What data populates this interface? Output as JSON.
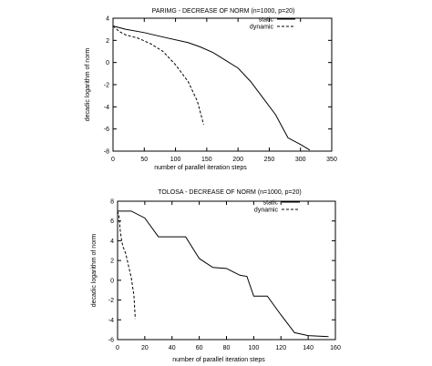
{
  "chart_data": [
    {
      "type": "line",
      "title": "PARIMG - DECREASE OF NORM (n=1000, p=20)",
      "xlabel": "number of parallel iteration steps",
      "ylabel": "decadic logarithm of norm",
      "xlim": [
        0,
        350
      ],
      "ylim": [
        -8,
        4
      ],
      "xticks": [
        0,
        50,
        100,
        150,
        200,
        250,
        300,
        350
      ],
      "yticks": [
        -8,
        -6,
        -4,
        -2,
        0,
        2,
        4
      ],
      "xtick_labels": [
        "0",
        "50",
        "100",
        "150",
        "200",
        "250",
        "300",
        "350"
      ],
      "ytick_labels": [
        "-8",
        "-6",
        "-4",
        "-2",
        "0",
        "2",
        "4"
      ],
      "legend": "top-right",
      "grid": false,
      "series": [
        {
          "name": "static",
          "style": "solid",
          "x": [
            0,
            20,
            50,
            80,
            120,
            140,
            160,
            180,
            200,
            220,
            240,
            260,
            280,
            300,
            315
          ],
          "y": [
            3.3,
            3.0,
            2.7,
            2.3,
            1.8,
            1.4,
            0.9,
            0.2,
            -0.5,
            -1.7,
            -3.2,
            -4.7,
            -6.8,
            -7.4,
            -7.9
          ]
        },
        {
          "name": "dynamic",
          "style": "dashed",
          "x": [
            0,
            10,
            20,
            40,
            60,
            80,
            100,
            120,
            135,
            145
          ],
          "y": [
            3.3,
            2.8,
            2.5,
            2.2,
            1.7,
            1.0,
            -0.2,
            -1.7,
            -3.5,
            -5.6
          ]
        }
      ]
    },
    {
      "type": "line",
      "title": "TOLOSA - DECREASE OF NORM (n=1000, p=20)",
      "xlabel": "number of parallel iteration steps",
      "ylabel": "decadic logarithm of norm",
      "xlim": [
        0,
        160
      ],
      "ylim": [
        -6,
        8
      ],
      "xticks": [
        0,
        20,
        40,
        60,
        80,
        100,
        120,
        140,
        160
      ],
      "yticks": [
        -6,
        -4,
        -2,
        0,
        2,
        4,
        6,
        8
      ],
      "xtick_labels": [
        "0",
        "20",
        "40",
        "60",
        "80",
        "100",
        "120",
        "140",
        "160"
      ],
      "ytick_labels": [
        "-6",
        "-4",
        "-2",
        "0",
        "2",
        "4",
        "6",
        "8"
      ],
      "legend": "top-right",
      "grid": false,
      "series": [
        {
          "name": "static",
          "style": "solid",
          "x": [
            0,
            10,
            20,
            30,
            40,
            50,
            60,
            70,
            80,
            90,
            95,
            100,
            110,
            120,
            130,
            140,
            155
          ],
          "y": [
            7.0,
            7.0,
            6.3,
            4.4,
            4.4,
            4.4,
            2.2,
            1.3,
            1.2,
            0.5,
            0.4,
            -1.6,
            -1.6,
            -3.5,
            -5.3,
            -5.6,
            -5.7
          ]
        },
        {
          "name": "dynamic",
          "style": "dashed",
          "x": [
            0,
            1,
            2,
            3,
            4,
            6,
            8,
            10,
            12,
            13
          ],
          "y": [
            7.0,
            6.5,
            5.0,
            4.0,
            3.4,
            2.7,
            1.5,
            0.3,
            -1.5,
            -3.9
          ]
        }
      ]
    }
  ]
}
